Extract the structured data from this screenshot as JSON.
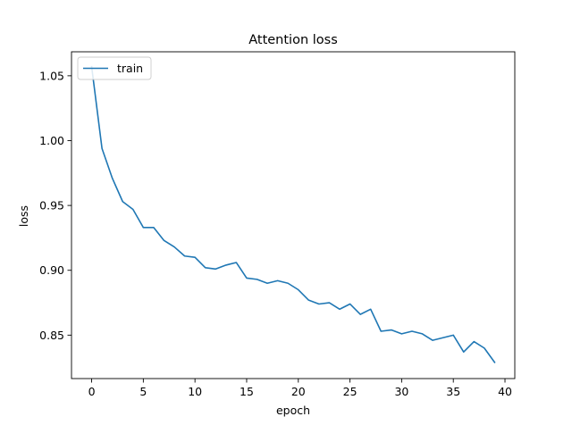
{
  "chart_data": {
    "type": "line",
    "title": "Attention loss",
    "xlabel": "epoch",
    "ylabel": "loss",
    "xlim": [
      -1.95,
      40.95
    ],
    "ylim": [
      0.8165,
      1.0685
    ],
    "xticks": [
      0,
      5,
      10,
      15,
      20,
      25,
      30,
      35,
      40
    ],
    "yticks": [
      0.85,
      0.9,
      0.95,
      1.0,
      1.05
    ],
    "ytick_labels": [
      "0.85",
      "0.90",
      "0.95",
      "1.00",
      "1.05"
    ],
    "grid": false,
    "legend": {
      "placement": "upper-left"
    },
    "colors": {
      "train": "#1f77b4"
    },
    "series": [
      {
        "name": "train",
        "x": [
          0,
          1,
          2,
          3,
          4,
          5,
          6,
          7,
          8,
          9,
          10,
          11,
          12,
          13,
          14,
          15,
          16,
          17,
          18,
          19,
          20,
          21,
          22,
          23,
          24,
          25,
          26,
          27,
          28,
          29,
          30,
          31,
          32,
          33,
          34,
          35,
          36,
          37,
          38,
          39
        ],
        "values": [
          1.057,
          0.994,
          0.971,
          0.953,
          0.947,
          0.933,
          0.933,
          0.923,
          0.918,
          0.911,
          0.91,
          0.902,
          0.901,
          0.904,
          0.906,
          0.894,
          0.893,
          0.89,
          0.892,
          0.89,
          0.885,
          0.877,
          0.874,
          0.875,
          0.87,
          0.874,
          0.866,
          0.87,
          0.853,
          0.854,
          0.851,
          0.853,
          0.851,
          0.846,
          0.848,
          0.85,
          0.837,
          0.845,
          0.84,
          0.829
        ]
      }
    ]
  }
}
